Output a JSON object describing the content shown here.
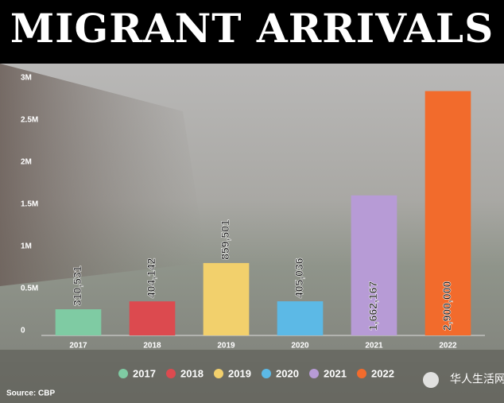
{
  "chart_data": {
    "type": "bar",
    "title": "MIGRANT ARRIVALS",
    "categories": [
      "2017",
      "2018",
      "2019",
      "2020",
      "2021",
      "2022"
    ],
    "values": [
      310531,
      404142,
      859501,
      405036,
      1662167,
      2900000
    ],
    "value_labels": [
      "310,531",
      "404,142",
      "859,501",
      "405,036",
      "1,662,167",
      "2,900,000"
    ],
    "colors": [
      "#7fcba3",
      "#dc4a4f",
      "#f2d06c",
      "#5cb9e6",
      "#b79bd6",
      "#f26b2c"
    ],
    "ylim": [
      0,
      3000000
    ],
    "yticks": [
      0,
      {
        "value": 500000,
        "label": "0.5M"
      },
      {
        "value": 1000000,
        "label": "1M"
      },
      {
        "value": 1500000,
        "label": "1.5M"
      },
      {
        "value": 2000000,
        "label": "2M"
      },
      {
        "value": 2500000,
        "label": "2.5M"
      },
      {
        "value": 3000000,
        "label": "3M"
      }
    ],
    "legend": true,
    "source": "Source: CBP"
  },
  "watermark": "华人生活网"
}
